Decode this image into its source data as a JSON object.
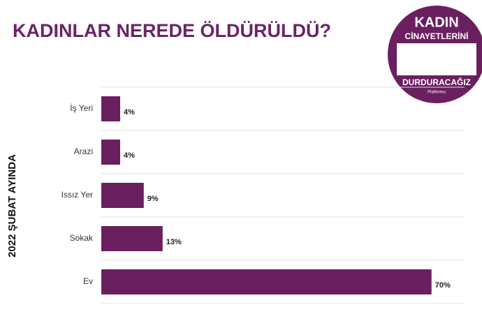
{
  "chart_data": {
    "type": "bar",
    "orientation": "horizontal",
    "title": "KADINLAR NEREDE ÖLDÜRÜLDÜ?",
    "y_label": "2022 ŞUBAT AYINDA",
    "categories": [
      "İş Yeri",
      "Arazi",
      "Issız Yer",
      "Sokak",
      "Ev"
    ],
    "values": [
      4,
      4,
      9,
      13,
      70
    ],
    "value_labels": [
      "4%",
      "4%",
      "9%",
      "13%",
      "70%"
    ],
    "color": "#6a1f5f",
    "xlim": [
      0,
      77
    ]
  },
  "logo": {
    "line1": "KADIN",
    "line2": "CİNAYETLERİNİ",
    "line3": "DURDURACAĞIZ",
    "line4": "Platformu"
  }
}
